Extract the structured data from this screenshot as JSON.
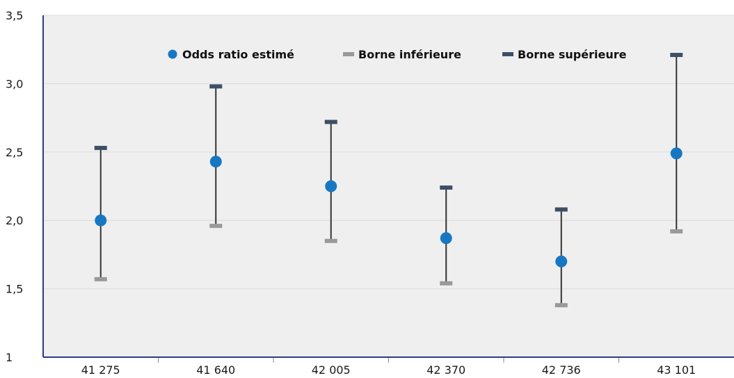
{
  "chart_data": {
    "type": "scatter",
    "categories": [
      "41 275",
      "41 640",
      "42 005",
      "42 370",
      "42 736",
      "43 101"
    ],
    "series": [
      {
        "name": "Odds ratio estimé",
        "values": [
          2.0,
          2.43,
          2.25,
          1.87,
          1.7,
          2.49
        ]
      },
      {
        "name": "Borne inférieure",
        "values": [
          1.57,
          1.96,
          1.85,
          1.54,
          1.38,
          1.92
        ]
      },
      {
        "name": "Borne supérieure",
        "values": [
          2.53,
          2.98,
          2.72,
          2.24,
          2.08,
          3.21
        ]
      }
    ],
    "title": "",
    "xlabel": "",
    "ylabel": "",
    "ylim": [
      1,
      3.5
    ],
    "yticks": [
      {
        "value": 1,
        "label": "1"
      },
      {
        "value": 1.5,
        "label": "1,5"
      },
      {
        "value": 2,
        "label": "2,0"
      },
      {
        "value": 2.5,
        "label": "2,5"
      },
      {
        "value": 3,
        "label": "3,0"
      },
      {
        "value": 3.5,
        "label": "3,5"
      }
    ],
    "grid": true,
    "legend": "top-center",
    "colors": {
      "estimate": "#1877c2",
      "lower": "#999999",
      "upper": "#3d4f66",
      "whisker": "#333333",
      "plot_bg": "#efefef",
      "axis": "#2b3a8c",
      "grid": "#dcdcdc"
    }
  }
}
